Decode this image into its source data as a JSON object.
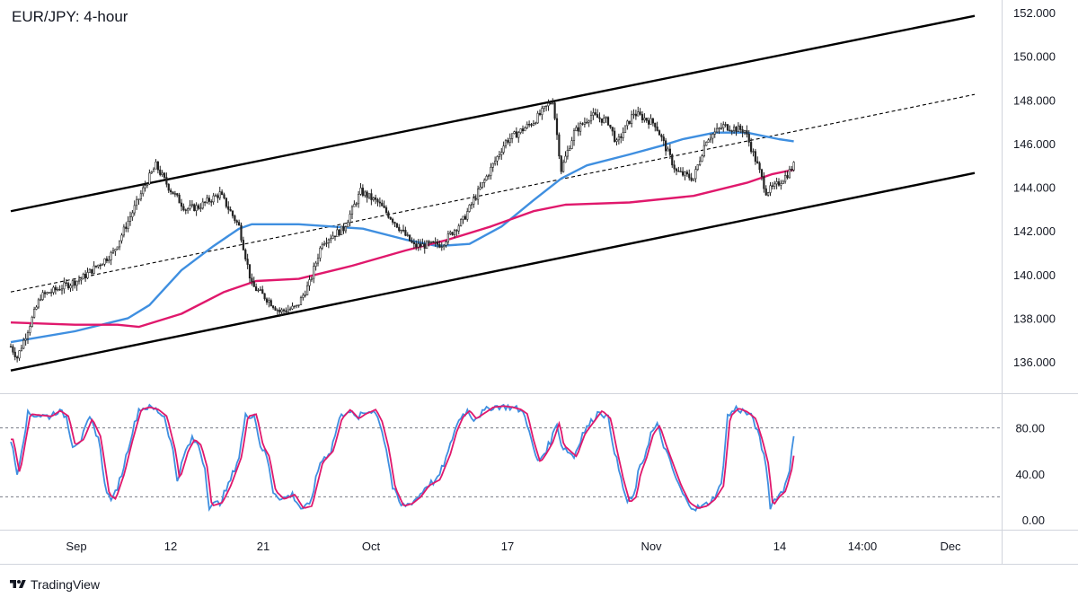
{
  "header": {
    "title": "EUR/JPY: 4-hour"
  },
  "footer": {
    "brand": "TradingView"
  },
  "colors": {
    "sma_fast": "#3f8fe0",
    "sma_slow": "#e0186c",
    "stoch_k": "#3f8fe0",
    "stoch_d": "#e0186c",
    "candle": "#222222",
    "channel": "#000000",
    "axis_text": "#131722",
    "grid_border": "#d1d4dc"
  },
  "chart_data": [
    {
      "type": "candlestick",
      "title": "EUR/JPY: 4-hour",
      "x_tick_labels": [
        "Sep",
        "12",
        "21",
        "Oct",
        "17",
        "Nov",
        "14",
        "14:00",
        "Dec"
      ],
      "y_tick_labels": [
        "136.000",
        "138.000",
        "140.000",
        "142.000",
        "144.000",
        "146.000",
        "148.000",
        "150.000",
        "152.000"
      ],
      "ylim": [
        134.6,
        152.3
      ],
      "x_dates": [
        "Aug 28",
        "Nov 14"
      ],
      "price_anchors": [
        [
          0,
          136.7
        ],
        [
          3,
          136.2
        ],
        [
          14,
          139.0
        ],
        [
          33,
          139.8
        ],
        [
          48,
          141.0
        ],
        [
          64,
          144.3
        ],
        [
          68,
          145.0
        ],
        [
          74,
          144.0
        ],
        [
          82,
          143.0
        ],
        [
          88,
          143.1
        ],
        [
          98,
          143.7
        ],
        [
          107,
          142.2
        ],
        [
          113,
          139.5
        ],
        [
          121,
          138.8
        ],
        [
          126,
          138.3
        ],
        [
          134,
          138.5
        ],
        [
          140,
          139.6
        ],
        [
          146,
          141.5
        ],
        [
          156,
          142.1
        ],
        [
          164,
          143.8
        ],
        [
          172,
          143.3
        ],
        [
          180,
          142.4
        ],
        [
          189,
          141.3
        ],
        [
          202,
          141.4
        ],
        [
          212,
          142.5
        ],
        [
          222,
          144.3
        ],
        [
          232,
          146.1
        ],
        [
          245,
          147.0
        ],
        [
          254,
          148.0
        ],
        [
          258,
          144.8
        ],
        [
          264,
          146.5
        ],
        [
          272,
          147.3
        ],
        [
          280,
          147.0
        ],
        [
          284,
          146.0
        ],
        [
          292,
          147.4
        ],
        [
          302,
          146.9
        ],
        [
          312,
          144.7
        ],
        [
          320,
          144.4
        ],
        [
          326,
          146.2
        ],
        [
          334,
          146.8
        ],
        [
          344,
          146.6
        ],
        [
          350,
          145.0
        ],
        [
          354,
          143.8
        ],
        [
          358,
          144.0
        ],
        [
          364,
          144.6
        ],
        [
          367,
          145.0
        ]
      ],
      "channel_upper": {
        "from": [
          "Aug 28",
          142.9
        ],
        "to": [
          "Nov 27",
          151.85
        ]
      },
      "channel_middle": {
        "from": [
          "Aug 28",
          139.2
        ],
        "to": [
          "Nov 27",
          148.25
        ]
      },
      "channel_lower": {
        "from": [
          "Aug 28",
          135.6
        ],
        "to": [
          "Nov 27",
          144.65
        ]
      },
      "grid": false,
      "series": [
        {
          "line": "sma_fast",
          "values": [
            [
              0,
              136.9
            ],
            [
              30,
              137.4
            ],
            [
              55,
              138.0
            ],
            [
              65,
              138.6
            ],
            [
              80,
              140.2
            ],
            [
              95,
              141.3
            ],
            [
              107,
              142.1
            ],
            [
              113,
              142.3
            ],
            [
              135,
              142.3
            ],
            [
              165,
              142.1
            ],
            [
              185,
              141.6
            ],
            [
              200,
              141.3
            ],
            [
              215,
              141.4
            ],
            [
              230,
              142.2
            ],
            [
              245,
              143.4
            ],
            [
              258,
              144.4
            ],
            [
              270,
              145.0
            ],
            [
              290,
              145.5
            ],
            [
              305,
              145.9
            ],
            [
              315,
              146.2
            ],
            [
              330,
              146.5
            ],
            [
              345,
              146.5
            ],
            [
              360,
              146.2
            ],
            [
              367,
              146.1
            ]
          ]
        },
        {
          "line": "sma_slow",
          "values": [
            [
              0,
              137.8
            ],
            [
              30,
              137.7
            ],
            [
              50,
              137.7
            ],
            [
              60,
              137.6
            ],
            [
              80,
              138.2
            ],
            [
              100,
              139.2
            ],
            [
              115,
              139.7
            ],
            [
              135,
              139.8
            ],
            [
              160,
              140.4
            ],
            [
              185,
              141.1
            ],
            [
              205,
              141.6
            ],
            [
              225,
              142.2
            ],
            [
              245,
              142.9
            ],
            [
              260,
              143.2
            ],
            [
              290,
              143.3
            ],
            [
              320,
              143.6
            ],
            [
              345,
              144.2
            ],
            [
              357,
              144.6
            ],
            [
              367,
              144.8
            ]
          ]
        }
      ]
    },
    {
      "type": "line",
      "title": "",
      "y_tick_labels": [
        "0.00",
        "40.00",
        "80.00"
      ],
      "ylim": [
        -8,
        110
      ],
      "levels": [
        20,
        80
      ],
      "stoch_anchors": [
        [
          0,
          70
        ],
        [
          3,
          40
        ],
        [
          8,
          92
        ],
        [
          18,
          90
        ],
        [
          22,
          95
        ],
        [
          26,
          90
        ],
        [
          29,
          65
        ],
        [
          33,
          70
        ],
        [
          37,
          88
        ],
        [
          41,
          72
        ],
        [
          45,
          22
        ],
        [
          48,
          18
        ],
        [
          52,
          40
        ],
        [
          56,
          70
        ],
        [
          60,
          96
        ],
        [
          64,
          98
        ],
        [
          68,
          96
        ],
        [
          72,
          90
        ],
        [
          76,
          60
        ],
        [
          78,
          35
        ],
        [
          82,
          60
        ],
        [
          85,
          70
        ],
        [
          88,
          65
        ],
        [
          91,
          45
        ],
        [
          93,
          12
        ],
        [
          98,
          15
        ],
        [
          102,
          30
        ],
        [
          104,
          40
        ],
        [
          107,
          55
        ],
        [
          110,
          90
        ],
        [
          114,
          92
        ],
        [
          117,
          65
        ],
        [
          120,
          55
        ],
        [
          123,
          25
        ],
        [
          127,
          18
        ],
        [
          132,
          22
        ],
        [
          136,
          10
        ],
        [
          140,
          12
        ],
        [
          145,
          50
        ],
        [
          150,
          60
        ],
        [
          154,
          88
        ],
        [
          158,
          96
        ],
        [
          162,
          88
        ],
        [
          165,
          92
        ],
        [
          170,
          96
        ],
        [
          173,
          85
        ],
        [
          176,
          62
        ],
        [
          179,
          28
        ],
        [
          183,
          12
        ],
        [
          187,
          14
        ],
        [
          191,
          20
        ],
        [
          195,
          30
        ],
        [
          200,
          35
        ],
        [
          205,
          58
        ],
        [
          208,
          78
        ],
        [
          211,
          90
        ],
        [
          214,
          95
        ],
        [
          217,
          88
        ],
        [
          221,
          93
        ],
        [
          225,
          98
        ],
        [
          230,
          99
        ],
        [
          234,
          98
        ],
        [
          238,
          96
        ],
        [
          241,
          92
        ],
        [
          244,
          68
        ],
        [
          247,
          50
        ],
        [
          250,
          58
        ],
        [
          253,
          68
        ],
        [
          256,
          85
        ],
        [
          258,
          65
        ],
        [
          261,
          60
        ],
        [
          264,
          55
        ],
        [
          268,
          75
        ],
        [
          272,
          85
        ],
        [
          276,
          95
        ],
        [
          280,
          88
        ],
        [
          283,
          60
        ],
        [
          286,
          35
        ],
        [
          289,
          15
        ],
        [
          292,
          20
        ],
        [
          294,
          40
        ],
        [
          297,
          55
        ],
        [
          300,
          75
        ],
        [
          303,
          82
        ],
        [
          306,
          65
        ],
        [
          309,
          50
        ],
        [
          313,
          30
        ],
        [
          317,
          15
        ],
        [
          321,
          10
        ],
        [
          325,
          12
        ],
        [
          329,
          18
        ],
        [
          333,
          30
        ],
        [
          336,
          90
        ],
        [
          340,
          97
        ],
        [
          344,
          94
        ],
        [
          348,
          88
        ],
        [
          351,
          70
        ],
        [
          354,
          48
        ],
        [
          356,
          12
        ],
        [
          359,
          20
        ],
        [
          362,
          25
        ],
        [
          365,
          45
        ],
        [
          367,
          72
        ]
      ]
    }
  ]
}
